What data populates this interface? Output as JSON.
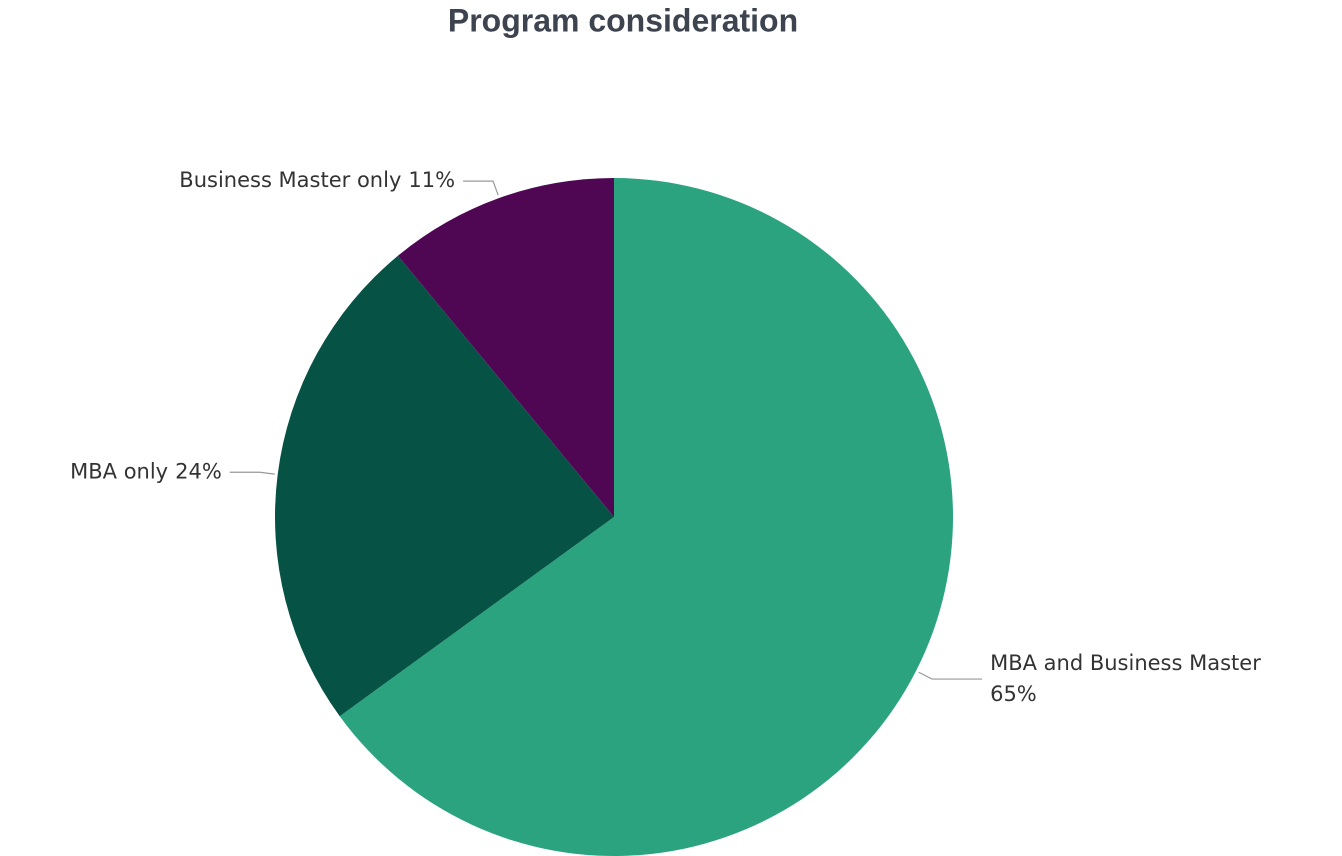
{
  "chart_data": {
    "type": "pie",
    "title": "Program consideration",
    "categories": [
      "MBA and Business Master",
      "MBA only",
      "Business Master only"
    ],
    "values": [
      65,
      24,
      11
    ],
    "value_labels": [
      "65%",
      "24%",
      "11%"
    ],
    "colors": [
      "#2aa37e",
      "#065345",
      "#4f0753"
    ]
  }
}
